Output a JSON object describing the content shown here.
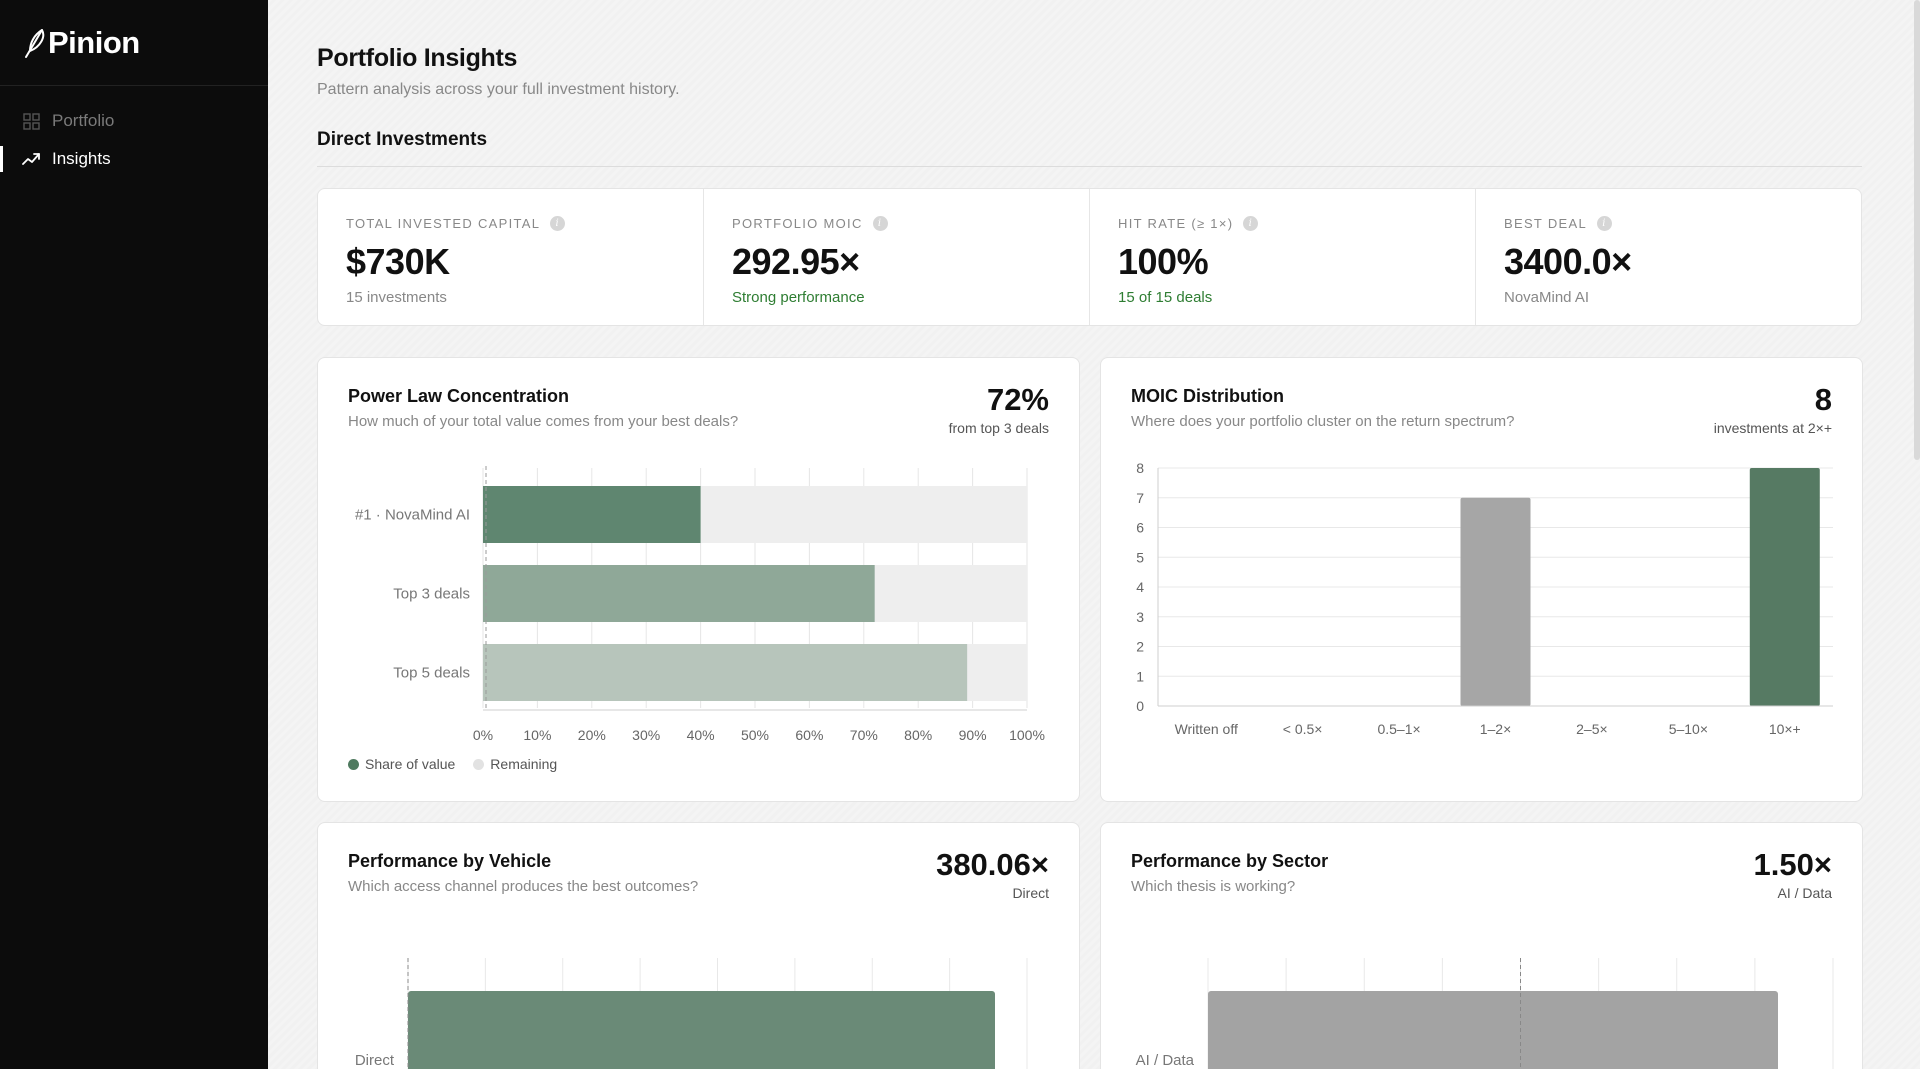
{
  "app": {
    "name": "Pinion"
  },
  "sidebar": {
    "items": [
      {
        "label": "Portfolio",
        "icon": "grid-icon",
        "active": false
      },
      {
        "label": "Insights",
        "icon": "trending-up-icon",
        "active": true
      }
    ]
  },
  "header": {
    "title": "Portfolio Insights",
    "subtitle": "Pattern analysis across your full investment history."
  },
  "section": {
    "title": "Direct Investments"
  },
  "kpis": [
    {
      "label": "TOTAL INVESTED CAPITAL",
      "value": "$730K",
      "sub": "15 investments",
      "sub_color": "#888888"
    },
    {
      "label": "PORTFOLIO MOIC",
      "value": "292.95×",
      "sub": "Strong performance",
      "sub_color": "#2e7d32"
    },
    {
      "label": "HIT RATE (≥ 1×)",
      "value": "100%",
      "sub": "15 of 15 deals",
      "sub_color": "#2e7d32"
    },
    {
      "label": "BEST DEAL",
      "value": "3400.0×",
      "sub": "NovaMind AI",
      "sub_color": "#888888"
    }
  ],
  "cards": {
    "power_law": {
      "title": "Power Law Concentration",
      "subtitle": "How much of your total value comes from your best deals?",
      "big": "72%",
      "big_sub": "from top 3 deals",
      "legend": [
        "Share of value",
        "Remaining"
      ]
    },
    "moic_dist": {
      "title": "MOIC Distribution",
      "subtitle": "Where does your portfolio cluster on the return spectrum?",
      "big": "8",
      "big_sub": "investments at 2×+"
    },
    "vehicle": {
      "title": "Performance by Vehicle",
      "subtitle": "Which access channel produces the best outcomes?",
      "big": "380.06×",
      "big_sub": "Direct"
    },
    "sector": {
      "title": "Performance by Sector",
      "subtitle": "Which thesis is working?",
      "big": "1.50×",
      "big_sub": "AI / Data"
    }
  },
  "colors": {
    "accent_green": "#5f8670",
    "mid_green": "#8fa898",
    "light_green": "#b7c5bb",
    "gray_bar": "#a6a6a6",
    "remaining": "#eeeeee",
    "positive_text": "#2e7d32"
  },
  "chart_data": [
    {
      "type": "bar",
      "orientation": "horizontal",
      "categories": [
        "#1 · NovaMind AI",
        "Top 3 deals",
        "Top 5 deals"
      ],
      "series": [
        {
          "name": "Share of value",
          "values": [
            40,
            72,
            89
          ]
        },
        {
          "name": "Remaining",
          "values": [
            60,
            28,
            11
          ]
        }
      ],
      "xlim": [
        0,
        100
      ],
      "xticks": [
        "0%",
        "10%",
        "20%",
        "30%",
        "40%",
        "50%",
        "60%",
        "70%",
        "80%",
        "90%",
        "100%"
      ],
      "grid": true,
      "legend": "bottom-left"
    },
    {
      "type": "bar",
      "categories": [
        "Written off",
        "< 0.5×",
        "0.5–1×",
        "1–2×",
        "2–5×",
        "5–10×",
        "10×+"
      ],
      "values": [
        0,
        0,
        0,
        7,
        0,
        0,
        8
      ],
      "ylim": [
        0,
        8
      ],
      "yticks": [
        "0",
        "1",
        "2",
        "3",
        "4",
        "5",
        "6",
        "7",
        "8"
      ],
      "grid": true
    },
    {
      "type": "bar",
      "orientation": "horizontal",
      "categories": [
        "Direct"
      ],
      "values": [
        380.06
      ],
      "grid": true
    },
    {
      "type": "bar",
      "orientation": "horizontal",
      "categories": [
        "AI / Data"
      ],
      "values": [
        1.5
      ],
      "grid": true
    }
  ]
}
